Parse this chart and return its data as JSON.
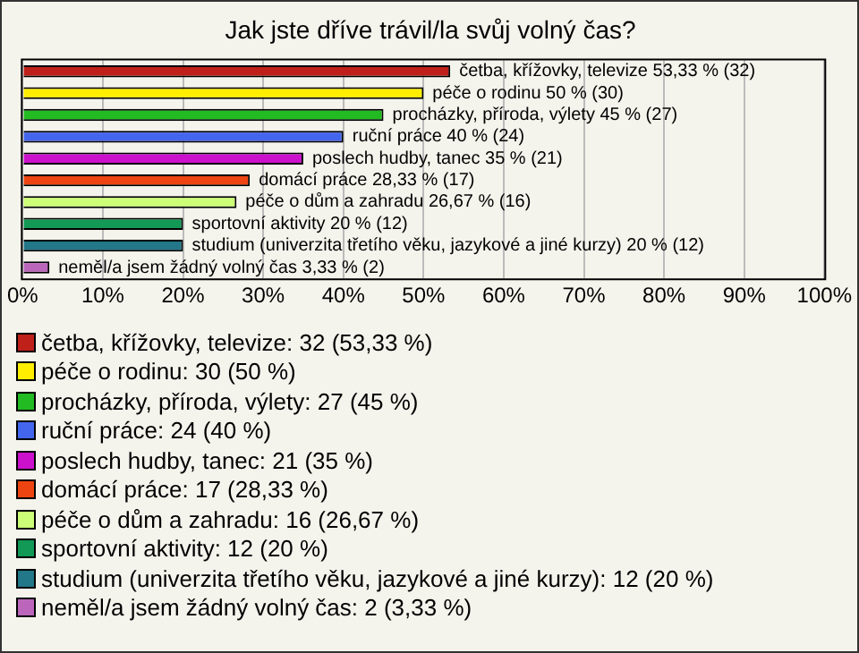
{
  "chart_data": {
    "type": "bar",
    "orientation": "horizontal",
    "title": "Jak jste dříve trávil/la svůj volný čas?",
    "categories": [
      "četba, křížovky, televize",
      "péče o rodinu",
      "procházky, příroda, výlety",
      "ruční práce",
      "poslech hudby, tanec",
      "domácí práce",
      "péče o dům a zahradu",
      "sportovní aktivity",
      "studium (univerzita třetího věku, jazykové a jiné kurzy)",
      "neměl/a jsem žádný volný čas"
    ],
    "values": [
      53.33,
      50,
      45,
      40,
      35,
      28.33,
      26.67,
      20,
      20,
      3.33
    ],
    "colors": [
      "#c0201a",
      "#ffee00",
      "#22bb22",
      "#4466ee",
      "#cc11cc",
      "#ee4411",
      "#ccff77",
      "#119955",
      "#227788",
      "#bb66bb"
    ],
    "value_labels": [
      "53,33 % (32)",
      "50 % (30)",
      "45 % (27)",
      "40 % (24)",
      "35 % (21)",
      "28,33 % (17)",
      "26,67 % (16)",
      "20 % (12)",
      "20 % (12)",
      "3,33 % (2)"
    ],
    "xlim": [
      0,
      100
    ],
    "xticks": [
      {
        "value": 0,
        "label": "0%"
      },
      {
        "value": 10,
        "label": "10%"
      },
      {
        "value": 20,
        "label": "20%"
      },
      {
        "value": 30,
        "label": "30%"
      },
      {
        "value": 40,
        "label": "40%"
      },
      {
        "value": 50,
        "label": "50%"
      },
      {
        "value": 60,
        "label": "60%"
      },
      {
        "value": 70,
        "label": "70%"
      },
      {
        "value": 80,
        "label": "80%"
      },
      {
        "value": 90,
        "label": "90%"
      },
      {
        "value": 100,
        "label": "100%"
      }
    ],
    "tick_labels": "x",
    "grid": "x",
    "annotations": [
      "četba, křížovky, televize: 32 (53,33 %)",
      "péče o rodinu: 30 (50 %)",
      "procházky, příroda, výlety: 27 (45 %)",
      "ruční práce: 24 (40 %)",
      "poslech hudby, tanec: 21 (35 %)",
      "domácí práce: 17 (28,33 %)",
      "péče o dům a zahradu: 16 (26,67 %)",
      "sportovní aktivity: 12 (20 %)",
      "studium (univerzita třetího věku, jazykové a jiné kurzy): 12 (20 %)",
      "neměl/a jsem žádný volný čas: 2 (3,33 %)"
    ]
  }
}
